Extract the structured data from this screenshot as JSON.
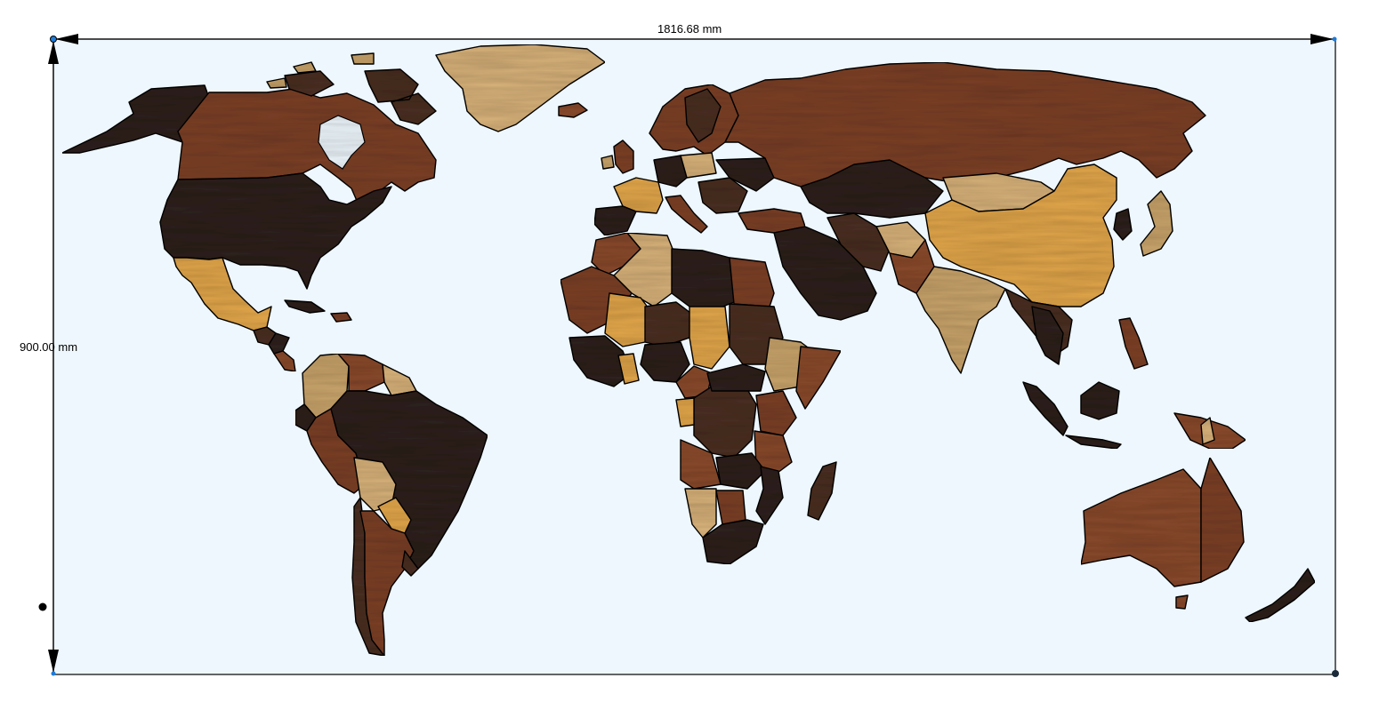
{
  "dimensions": {
    "width_label": "1816.68 mm",
    "height_label": "900.00 mm"
  },
  "colors": {
    "canvas_bg": "#eef7fd",
    "frame": "#000000",
    "handle": "#1e7bd8",
    "wood_dark": "#2e211c",
    "wood_walnut": "#4a2f22",
    "wood_medium": "#7c4026",
    "wood_cherry": "#8a4a2c",
    "wood_light": "#c9a46b",
    "wood_maple": "#d8b27a",
    "wood_golden": "#e2a64a"
  },
  "icons": {
    "top_left_handle": "blue-square-handle",
    "bottom_right_handle": "black-dot-handle",
    "origin_marker": "black-dot"
  }
}
